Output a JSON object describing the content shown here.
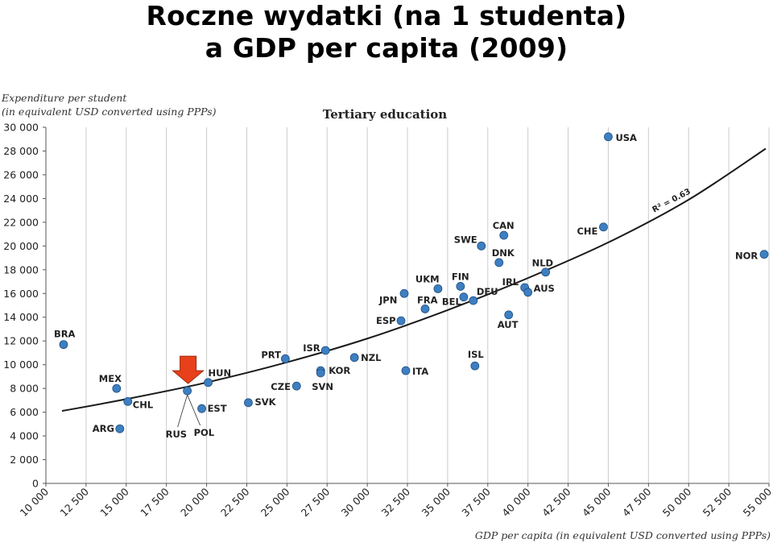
{
  "slide": {
    "title_line1": "Roczne wydatki (na 1 studenta)",
    "title_line2": "a GDP per capita (2009)"
  },
  "chart_data": {
    "type": "scatter",
    "title": "Tertiary education",
    "ylabel_line1": "Expenditure per student",
    "ylabel_line2": "(in equivalent USD converted using PPPs)",
    "xlabel": "GDP per capita (in equivalent USD converted using PPPs)",
    "xlim": [
      10000,
      55000
    ],
    "ylim": [
      0,
      30000
    ],
    "x_ticks": [
      10000,
      12500,
      15000,
      17500,
      20000,
      22500,
      25000,
      27500,
      30000,
      32500,
      35000,
      37500,
      40000,
      42500,
      45000,
      47500,
      50000,
      52500,
      55000
    ],
    "x_tick_labels": [
      "10 000",
      "12 500",
      "15 000",
      "17 500",
      "20 000",
      "22 500",
      "25 000",
      "27 500",
      "30 000",
      "32 500",
      "35 000",
      "37 500",
      "40 000",
      "42 500",
      "45 000",
      "47 500",
      "50 000",
      "52 500",
      "55 000"
    ],
    "y_ticks": [
      0,
      2000,
      4000,
      6000,
      8000,
      10000,
      12000,
      14000,
      16000,
      18000,
      20000,
      22000,
      24000,
      26000,
      28000,
      30000
    ],
    "y_tick_labels": [
      "0",
      "2 000",
      "4 000",
      "6 000",
      "8 000",
      "10 000",
      "12 000",
      "14 000",
      "16 000",
      "18 000",
      "20 000",
      "22 000",
      "24 000",
      "26 000",
      "28 000",
      "30 000"
    ],
    "grid": "vertical",
    "point_color": "#3d7fc1",
    "trend_color": "#1a1a1a",
    "highlight_arrow_color": "#e8401a",
    "highlighted_country": "RUS",
    "r_squared_label": "R² = 0.63",
    "trend_points": [
      {
        "x": 11000,
        "y": 6100
      },
      {
        "x": 15000,
        "y": 7100
      },
      {
        "x": 20000,
        "y": 8500
      },
      {
        "x": 25000,
        "y": 10200
      },
      {
        "x": 30000,
        "y": 12200
      },
      {
        "x": 35000,
        "y": 14600
      },
      {
        "x": 40000,
        "y": 17300
      },
      {
        "x": 45000,
        "y": 20300
      },
      {
        "x": 50000,
        "y": 23900
      },
      {
        "x": 54800,
        "y": 28200
      }
    ],
    "points": [
      {
        "label": "BRA",
        "x": 11100,
        "y": 11700
      },
      {
        "label": "MEX",
        "x": 14400,
        "y": 8000
      },
      {
        "label": "CHL",
        "x": 15100,
        "y": 6900
      },
      {
        "label": "ARG",
        "x": 14600,
        "y": 4600
      },
      {
        "label": "RUS",
        "x": 18800,
        "y": 7800
      },
      {
        "label": "HUN",
        "x": 20100,
        "y": 8500
      },
      {
        "label": "EST",
        "x": 19700,
        "y": 6300
      },
      {
        "label": "POL",
        "x": 18800,
        "y": 7800
      },
      {
        "label": "SVK",
        "x": 22600,
        "y": 6800
      },
      {
        "label": "PRT",
        "x": 24900,
        "y": 10500
      },
      {
        "label": "CZE",
        "x": 25600,
        "y": 8200
      },
      {
        "label": "ISR",
        "x": 27400,
        "y": 11200
      },
      {
        "label": "KOR",
        "x": 27100,
        "y": 9500
      },
      {
        "label": "SVN",
        "x": 27100,
        "y": 9300
      },
      {
        "label": "NZL",
        "x": 29200,
        "y": 10600
      },
      {
        "label": "ESP",
        "x": 32100,
        "y": 13700
      },
      {
        "label": "JPN",
        "x": 32300,
        "y": 16000
      },
      {
        "label": "ITA",
        "x": 32400,
        "y": 9500
      },
      {
        "label": "FRA",
        "x": 33600,
        "y": 14700
      },
      {
        "label": "UKM",
        "x": 34400,
        "y": 16400
      },
      {
        "label": "FIN",
        "x": 35800,
        "y": 16600
      },
      {
        "label": "BEL",
        "x": 36000,
        "y": 15700
      },
      {
        "label": "DEU",
        "x": 36600,
        "y": 15400
      },
      {
        "label": "ISL",
        "x": 36700,
        "y": 9900
      },
      {
        "label": "SWE",
        "x": 37100,
        "y": 20000
      },
      {
        "label": "DNK",
        "x": 38200,
        "y": 18600
      },
      {
        "label": "CAN",
        "x": 38500,
        "y": 20900
      },
      {
        "label": "AUT",
        "x": 38800,
        "y": 14200
      },
      {
        "label": "IRL",
        "x": 39800,
        "y": 16500
      },
      {
        "label": "AUS",
        "x": 40000,
        "y": 16100
      },
      {
        "label": "NLD",
        "x": 41100,
        "y": 17800
      },
      {
        "label": "CHE",
        "x": 44700,
        "y": 21600
      },
      {
        "label": "USA",
        "x": 45000,
        "y": 29200
      },
      {
        "label": "NOR",
        "x": 54700,
        "y": 19300
      }
    ]
  }
}
